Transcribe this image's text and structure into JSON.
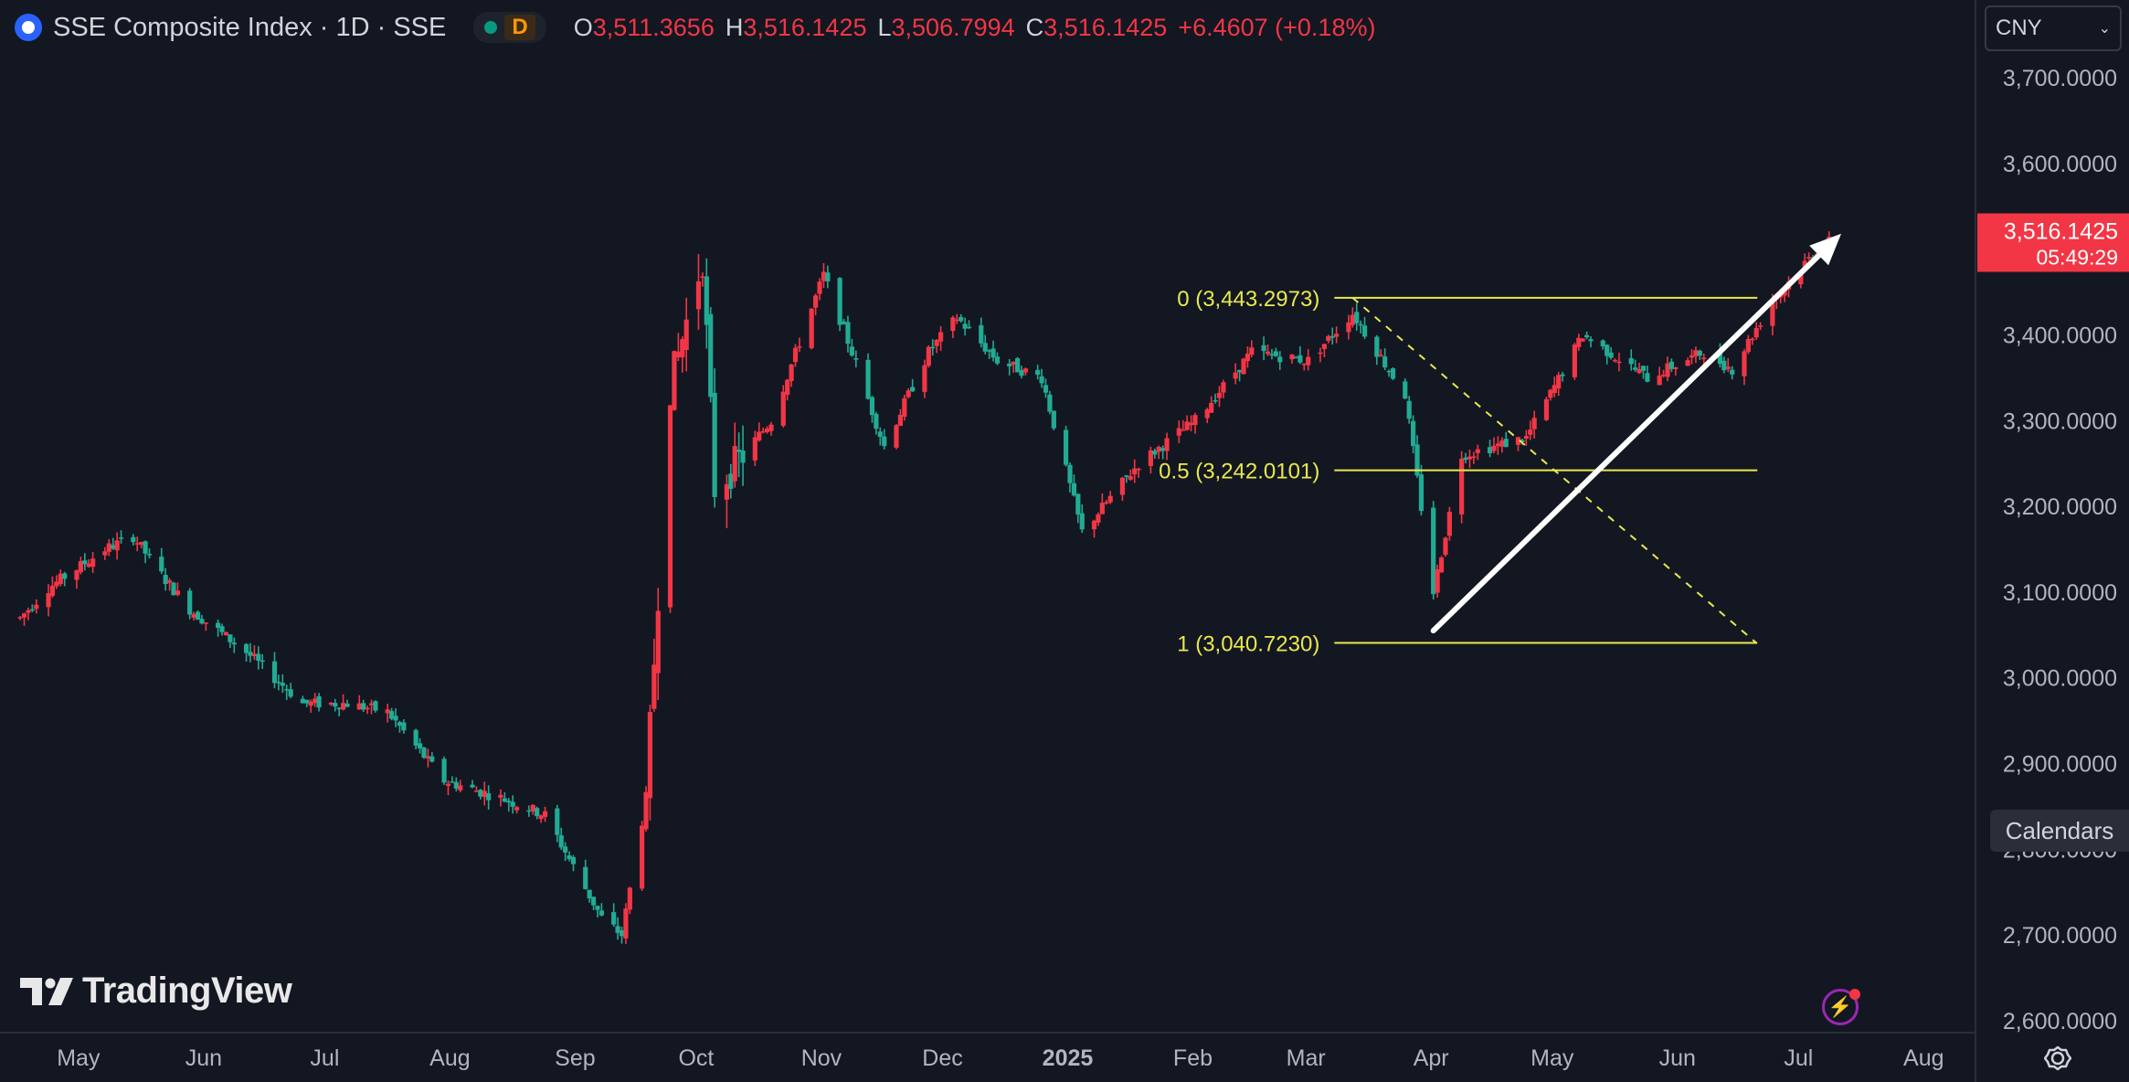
{
  "header": {
    "title": "SSE Composite Index · 1D · SSE",
    "interval_badge": "D",
    "ohlc": {
      "o_label": "O",
      "o_value": "3,511.3656",
      "h_label": "H",
      "h_value": "3,516.1425",
      "l_label": "L",
      "l_value": "3,506.7994",
      "c_label": "C",
      "c_value": "3,516.1425",
      "change": "+6.4607 (+0.18%)"
    }
  },
  "currency_select": {
    "value": "CNY"
  },
  "calendars_button": "Calendars",
  "brand": "TradingView",
  "icons": {
    "settings": "settings-icon",
    "spark": "lightning-icon",
    "logo": "tradingview-logo"
  },
  "colors": {
    "up": "#f23645",
    "down": "#22ab94",
    "background": "#131722",
    "fib": "#e9e94d",
    "arrow": "#ffffff"
  },
  "chart_data": {
    "type": "candlestick",
    "ylim": [
      2600,
      3700
    ],
    "y_ticks": [
      "3,700.0000",
      "3,600.0000",
      "3,500.0000",
      "3,400.0000",
      "3,300.0000",
      "3,200.0000",
      "3,100.0000",
      "3,000.0000",
      "2,900.0000",
      "2,800.0000",
      "2,700.0000",
      "2,600.0000"
    ],
    "x_ticks": [
      "May",
      "Jun",
      "Jul",
      "Aug",
      "Sep",
      "Oct",
      "Nov",
      "Dec",
      "2025",
      "Feb",
      "Mar",
      "Apr",
      "May",
      "Jun",
      "Jul",
      "Aug"
    ],
    "last_price": {
      "value": "3,516.1425",
      "countdown": "05:49:29"
    },
    "fibonacci": [
      {
        "label": "0 (3,443.2973)",
        "level": 3443.2973
      },
      {
        "label": "0.5 (3,242.0101)",
        "level": 3242.0101
      },
      {
        "label": "1 (3,040.7230)",
        "level": 3040.723
      }
    ],
    "price_path": [
      [
        "2024-04-22",
        3070
      ],
      [
        "2024-04-29",
        3105
      ],
      [
        "2024-05-13",
        3150
      ],
      [
        "2024-05-20",
        3165
      ],
      [
        "2024-05-27",
        3120
      ],
      [
        "2024-06-03",
        3080
      ],
      [
        "2024-06-17",
        3030
      ],
      [
        "2024-07-01",
        2970
      ],
      [
        "2024-07-12",
        2970
      ],
      [
        "2024-07-22",
        2960
      ],
      [
        "2024-08-05",
        2880
      ],
      [
        "2024-08-19",
        2860
      ],
      [
        "2024-08-30",
        2840
      ],
      [
        "2024-09-13",
        2720
      ],
      [
        "2024-09-18",
        2700
      ],
      [
        "2024-09-24",
        2860
      ],
      [
        "2024-09-30",
        3340
      ],
      [
        "2024-10-08",
        3490
      ],
      [
        "2024-10-11",
        3220
      ],
      [
        "2024-10-18",
        3260
      ],
      [
        "2024-10-25",
        3300
      ],
      [
        "2024-11-07",
        3470
      ],
      [
        "2024-11-14",
        3380
      ],
      [
        "2024-11-22",
        3270
      ],
      [
        "2024-12-03",
        3380
      ],
      [
        "2024-12-10",
        3420
      ],
      [
        "2024-12-20",
        3370
      ],
      [
        "2024-12-31",
        3350
      ],
      [
        "2025-01-10",
        3170
      ],
      [
        "2025-01-24",
        3250
      ],
      [
        "2025-02-07",
        3300
      ],
      [
        "2025-02-21",
        3380
      ],
      [
        "2025-03-07",
        3370
      ],
      [
        "2025-03-18",
        3425
      ],
      [
        "2025-03-31",
        3330
      ],
      [
        "2025-04-07",
        3100
      ],
      [
        "2025-04-14",
        3260
      ],
      [
        "2025-04-30",
        3280
      ],
      [
        "2025-05-14",
        3400
      ],
      [
        "2025-05-30",
        3350
      ],
      [
        "2025-06-13",
        3380
      ],
      [
        "2025-06-20",
        3360
      ],
      [
        "2025-06-30",
        3440
      ],
      [
        "2025-07-14",
        3516
      ]
    ],
    "trend_arrow": {
      "from": [
        "2025-04-07",
        3055
      ],
      "to": [
        "2025-07-17",
        3518
      ]
    },
    "fib_diagonal": {
      "from": [
        "2025-03-18",
        3443.2973
      ],
      "to": [
        "2025-06-26",
        3040.723
      ]
    }
  }
}
